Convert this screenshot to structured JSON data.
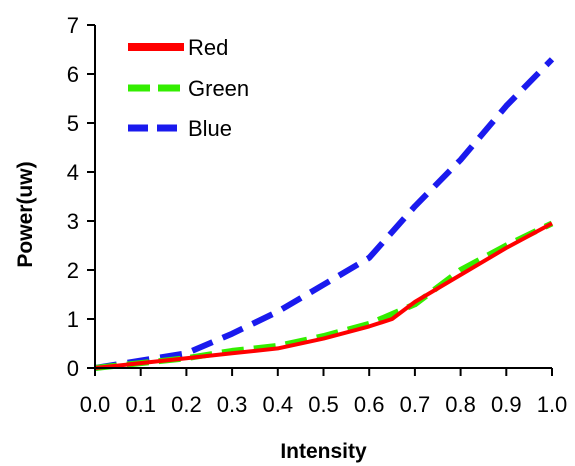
{
  "chart_data": {
    "type": "line",
    "title": "",
    "xlabel": "Intensity",
    "ylabel": "Power(uw)",
    "xlim": [
      0.0,
      1.0
    ],
    "ylim": [
      0,
      7
    ],
    "xticks": [
      "0.0",
      "0.1",
      "0.2",
      "0.3",
      "0.4",
      "0.5",
      "0.6",
      "0.7",
      "0.8",
      "0.9",
      "1.0"
    ],
    "yticks": [
      "0",
      "1",
      "2",
      "3",
      "4",
      "5",
      "6",
      "7"
    ],
    "grid": false,
    "legend_position": "top-left",
    "series": [
      {
        "name": "Red",
        "color": "#ff0000",
        "style": "solid",
        "x": [
          0.0,
          0.1,
          0.2,
          0.3,
          0.4,
          0.5,
          0.6,
          0.65,
          0.7,
          0.8,
          0.9,
          1.0
        ],
        "y": [
          0.0,
          0.1,
          0.2,
          0.3,
          0.4,
          0.6,
          0.85,
          1.0,
          1.35,
          1.9,
          2.45,
          2.95
        ]
      },
      {
        "name": "Green",
        "color": "#33ee00",
        "style": "dashed",
        "x": [
          0.0,
          0.1,
          0.2,
          0.3,
          0.4,
          0.5,
          0.6,
          0.7,
          0.8,
          0.9,
          1.0
        ],
        "y": [
          0.0,
          0.1,
          0.2,
          0.35,
          0.45,
          0.65,
          0.9,
          1.3,
          2.0,
          2.5,
          2.95
        ]
      },
      {
        "name": "Blue",
        "color": "#1a1aee",
        "style": "dashed",
        "x": [
          0.0,
          0.1,
          0.2,
          0.3,
          0.4,
          0.5,
          0.6,
          0.7,
          0.8,
          0.9,
          1.0
        ],
        "y": [
          0.0,
          0.15,
          0.3,
          0.7,
          1.15,
          1.7,
          2.25,
          3.3,
          4.25,
          5.35,
          6.3
        ]
      }
    ]
  }
}
